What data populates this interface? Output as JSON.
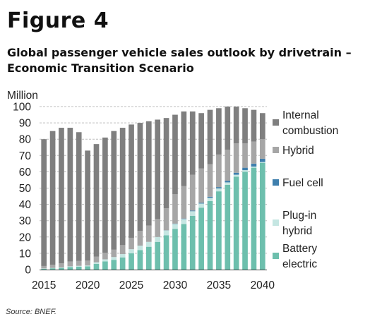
{
  "figure_label": "Figure 4",
  "subtitle": "Global passenger vehicle sales outlook by drivetrain – Economic Transition Scenario",
  "source": "Source: BNEF.",
  "chart_data": {
    "type": "bar",
    "stacked": true,
    "title": "Global passenger vehicle sales outlook by drivetrain – Economic Transition Scenario",
    "ylabel": "Million",
    "xlabel": "",
    "ylim": [
      0,
      100
    ],
    "y_ticks": [
      0,
      10,
      20,
      30,
      40,
      50,
      60,
      70,
      80,
      90,
      100
    ],
    "x_tick_labels": [
      "2015",
      "2020",
      "2025",
      "2030",
      "2035",
      "2040"
    ],
    "grid": "horizontal dashed",
    "legend_position": "right",
    "categories": [
      "2015",
      "2016",
      "2017",
      "2018",
      "2019",
      "2020",
      "2021",
      "2022",
      "2023",
      "2024",
      "2025",
      "2026",
      "2027",
      "2028",
      "2029",
      "2030",
      "2031",
      "2032",
      "2033",
      "2034",
      "2035",
      "2036",
      "2037",
      "2038",
      "2039",
      "2040"
    ],
    "series": [
      {
        "name": "Battery\nelectric",
        "color": "#6dbfad",
        "values": [
          0.5,
          0.8,
          1.0,
          1.5,
          1.8,
          2.0,
          3.5,
          5.0,
          6.0,
          7.5,
          10.0,
          12.0,
          14.0,
          17.0,
          21.0,
          25.0,
          28.0,
          33.0,
          38.0,
          42.0,
          48.0,
          52.0,
          57.0,
          60.0,
          62.5,
          65.5
        ]
      },
      {
        "name": "Plug-in\nhybrid",
        "color": "#c5e6e2",
        "values": [
          0.2,
          0.2,
          0.3,
          0.5,
          0.5,
          0.5,
          1.0,
          1.3,
          1.7,
          2.0,
          2.5,
          2.7,
          3.0,
          3.0,
          3.0,
          3.0,
          3.0,
          2.8,
          2.5,
          2.0,
          1.8,
          1.5,
          1.2,
          1.0,
          0.7,
          0.5
        ]
      },
      {
        "name": "Fuel cell",
        "color": "#3f7fad",
        "values": [
          0,
          0,
          0,
          0,
          0,
          0,
          0,
          0,
          0,
          0,
          0,
          0,
          0,
          0,
          0.1,
          0.2,
          0.3,
          0.4,
          0.5,
          0.7,
          0.8,
          1.0,
          1.2,
          1.5,
          1.8,
          2.0
        ]
      },
      {
        "name": "Hybrid",
        "color": "#a6a6a6",
        "values": [
          1.5,
          2.0,
          2.5,
          3.0,
          3.0,
          3.0,
          3.5,
          4.0,
          4.5,
          5.5,
          7.0,
          9.0,
          10.0,
          11.0,
          13.5,
          18.0,
          20.0,
          22.0,
          21.0,
          20.0,
          20.0,
          19.0,
          18.0,
          15.0,
          13.5,
          12.0
        ]
      },
      {
        "name": "Internal\ncombustion",
        "color": "#7f7f7f",
        "values": [
          77.8,
          82.0,
          83.2,
          82.0,
          79.0,
          67.5,
          69.0,
          70.7,
          72.8,
          72.0,
          69.5,
          66.3,
          64.0,
          61.0,
          55.4,
          48.8,
          45.7,
          38.8,
          34.0,
          33.3,
          28.4,
          26.5,
          22.6,
          21.5,
          19.5,
          16.0
        ]
      }
    ]
  }
}
